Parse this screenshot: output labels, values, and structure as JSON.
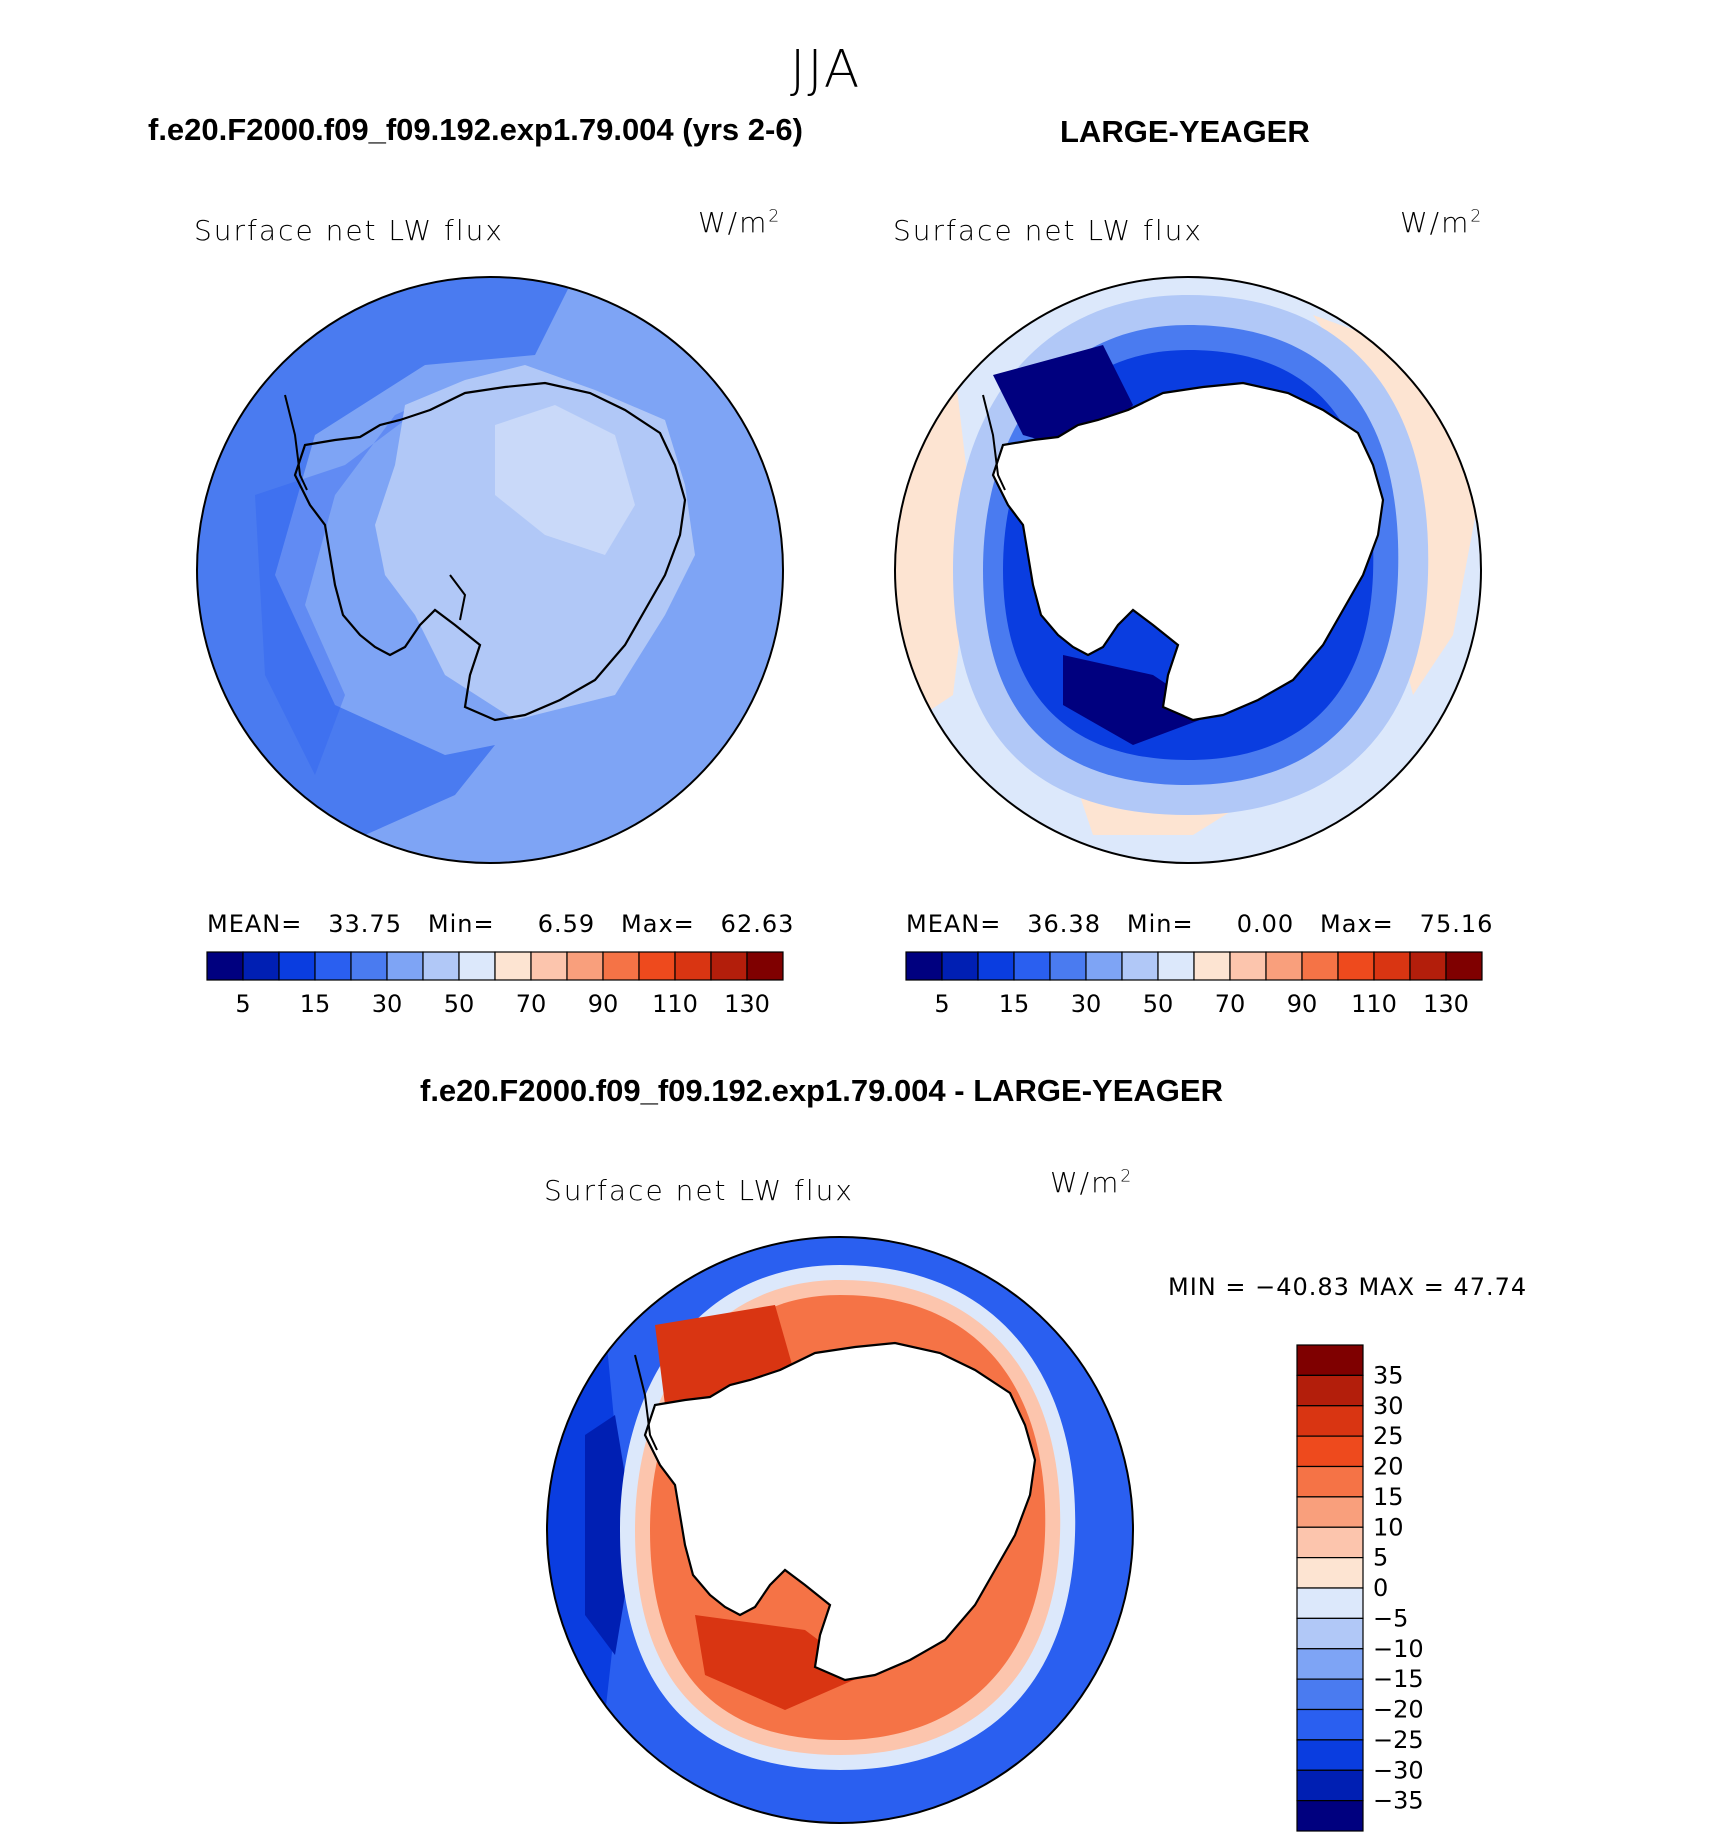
{
  "season": "JJA",
  "panels": {
    "left": {
      "header": "f.e20.F2000.f09_f09.192.exp1.79.004 (yrs 2-6)",
      "variable": "Surface net LW flux",
      "units_base": "W/m",
      "units_exp": "2",
      "mean_label": "MEAN=",
      "mean": "33.75",
      "min_label": "Min=",
      "min": "6.59",
      "max_label": "Max=",
      "max": "62.63"
    },
    "right": {
      "header": "LARGE-YEAGER",
      "variable": "Surface net LW flux",
      "units_base": "W/m",
      "units_exp": "2",
      "mean_label": "MEAN=",
      "mean": "36.38",
      "min_label": "Min=",
      "min": "0.00",
      "max_label": "Max=",
      "max": "75.16"
    },
    "diff": {
      "header": "f.e20.F2000.f09_f09.192.exp1.79.004 - LARGE-YEAGER",
      "variable": "Surface net LW flux",
      "units_base": "W/m",
      "units_exp": "2",
      "minmax": "MIN = −40.83 MAX =   47.74"
    }
  },
  "chart_data": [
    {
      "type": "heatmap",
      "projection": "south polar stereographic",
      "title": "f.e20.F2000.f09_f09.192.exp1.79.004 (yrs 2-6)",
      "variable": "Surface net LW flux",
      "units": "W/m2",
      "mean": 33.75,
      "min": 6.59,
      "max": 62.63,
      "colorbar": {
        "orientation": "horizontal",
        "tick_labels": [
          "5",
          "15",
          "30",
          "50",
          "70",
          "90",
          "110",
          "130"
        ],
        "colors": [
          "#00007f",
          "#001fb3",
          "#0a3de0",
          "#2a5ff0",
          "#4a7bf0",
          "#7ea4f5",
          "#b1c8f7",
          "#dce8fb",
          "#fde4d2",
          "#fcc5ad",
          "#f99f7c",
          "#f57346",
          "#ee4a1d",
          "#d93512",
          "#b31e0b",
          "#7f0000"
        ]
      }
    },
    {
      "type": "heatmap",
      "projection": "south polar stereographic",
      "title": "LARGE-YEAGER",
      "variable": "Surface net LW flux",
      "units": "W/m2",
      "mean": 36.38,
      "min": 0.0,
      "max": 75.16,
      "colorbar": {
        "orientation": "horizontal",
        "tick_labels": [
          "5",
          "15",
          "30",
          "50",
          "70",
          "90",
          "110",
          "130"
        ],
        "colors": [
          "#00007f",
          "#001fb3",
          "#0a3de0",
          "#2a5ff0",
          "#4a7bf0",
          "#7ea4f5",
          "#b1c8f7",
          "#dce8fb",
          "#fde4d2",
          "#fcc5ad",
          "#f99f7c",
          "#f57346",
          "#ee4a1d",
          "#d93512",
          "#b31e0b",
          "#7f0000"
        ]
      }
    },
    {
      "type": "heatmap",
      "projection": "south polar stereographic",
      "title": "f.e20.F2000.f09_f09.192.exp1.79.004 - LARGE-YEAGER",
      "variable": "Surface net LW flux",
      "units": "W/m2",
      "min": -40.83,
      "max": 47.74,
      "colorbar": {
        "orientation": "vertical",
        "tick_labels": [
          "35",
          "30",
          "25",
          "20",
          "15",
          "10",
          "5",
          "0",
          "−5",
          "−10",
          "−15",
          "−20",
          "−25",
          "−30",
          "−35"
        ],
        "colors": [
          "#7f0000",
          "#b31e0b",
          "#d93512",
          "#ee4a1d",
          "#f57346",
          "#f99f7c",
          "#fcc5ad",
          "#fde4d2",
          "#dce8fb",
          "#b1c8f7",
          "#7ea4f5",
          "#4a7bf0",
          "#2a5ff0",
          "#0a3de0",
          "#001fb3",
          "#00007f"
        ]
      }
    }
  ]
}
